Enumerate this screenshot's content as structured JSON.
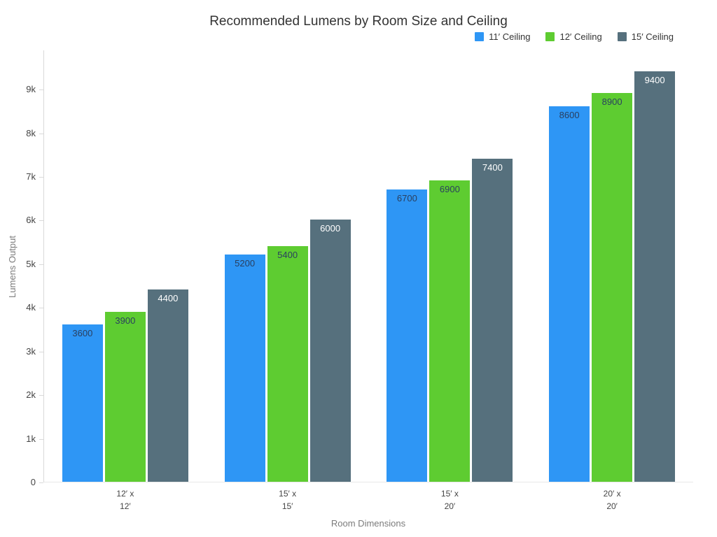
{
  "chart_data": {
    "type": "bar",
    "title": "Recommended Lumens by Room Size and Ceiling",
    "xlabel": "Room Dimensions",
    "ylabel": "Lumens Output",
    "categories": [
      "12′ x 12′",
      "15′ x 15′",
      "15′ x 20′",
      "20′ x 20′"
    ],
    "series": [
      {
        "name": "11′ Ceiling",
        "color": "#2E96F5",
        "label_color": "#2A3F5F",
        "values": [
          3600,
          5200,
          6700,
          8600
        ]
      },
      {
        "name": "12′ Ceiling",
        "color": "#5ECC31",
        "label_color": "#2A3F5F",
        "values": [
          3900,
          5400,
          6900,
          8900
        ]
      },
      {
        "name": "15′ Ceiling",
        "color": "#56707D",
        "label_color": "#FFFFFF",
        "values": [
          4400,
          6000,
          7400,
          9400
        ]
      }
    ],
    "ylim": [
      0,
      9900
    ],
    "yticks": [
      0,
      1000,
      2000,
      3000,
      4000,
      5000,
      6000,
      7000,
      8000,
      9000
    ],
    "ytick_labels": [
      "0",
      "1k",
      "2k",
      "3k",
      "4k",
      "5k",
      "6k",
      "7k",
      "8k",
      "9k"
    ],
    "grid": false,
    "legend_position": "top-right",
    "bar_value_labels": "inside-top"
  }
}
